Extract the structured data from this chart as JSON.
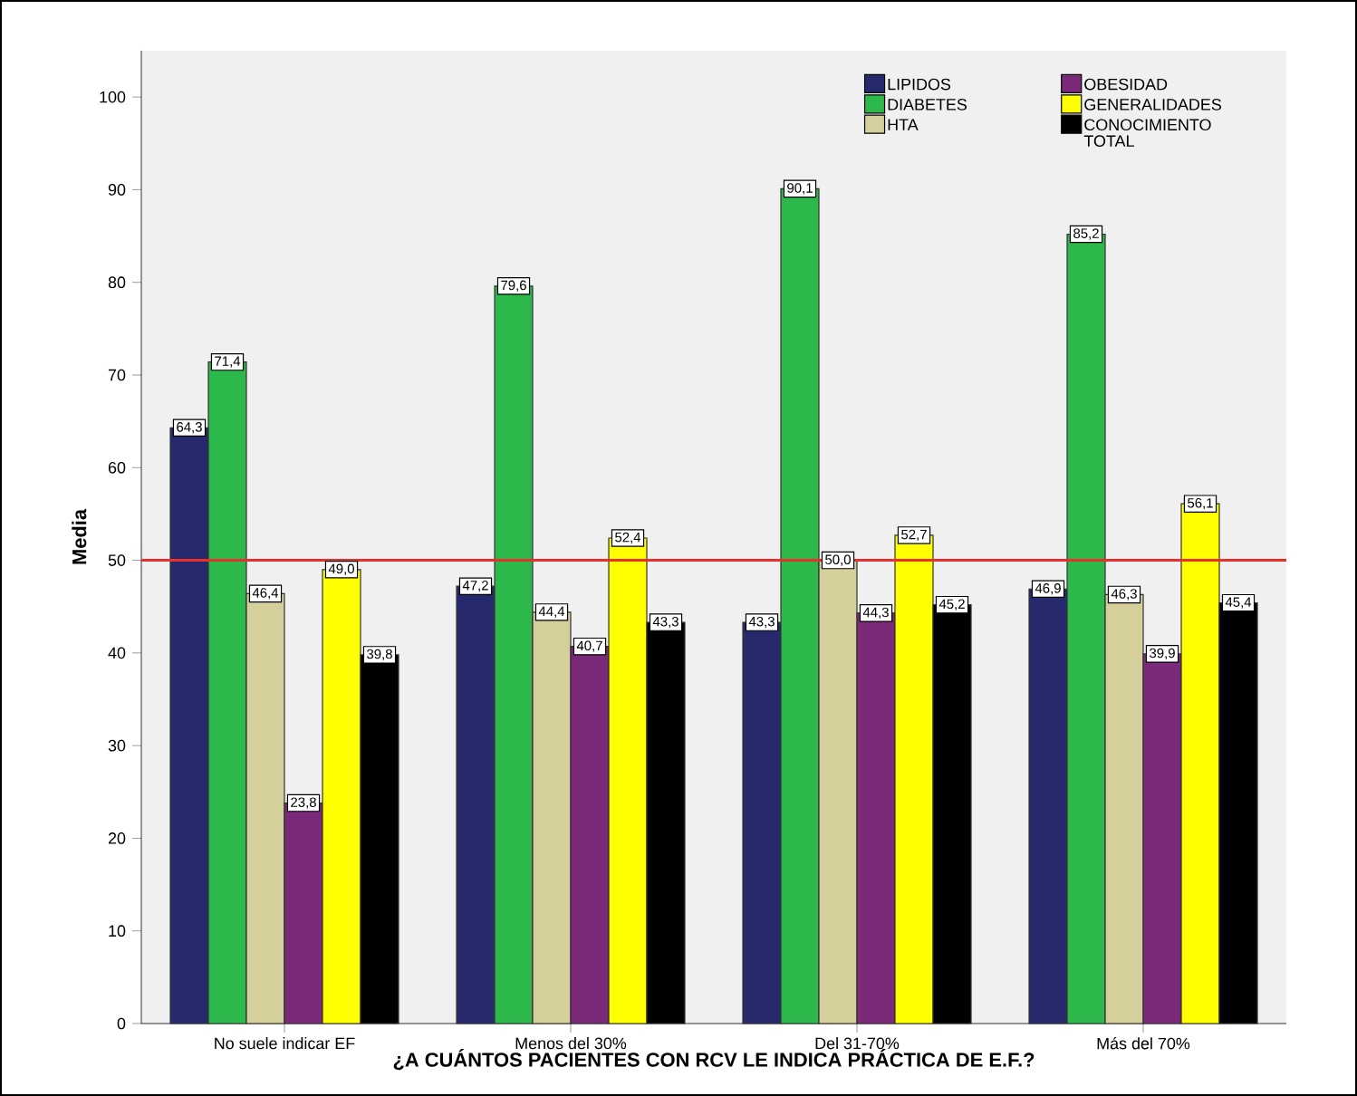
{
  "chart_data": {
    "type": "bar",
    "xlabel": "¿A CUÁNTOS PACIENTES CON RCV LE INDICA PRÁCTICA DE E.F.?",
    "ylabel": "Media",
    "categories": [
      "No suele indicar EF",
      "Menos del 30%",
      "Del 31-70%",
      "Más del 70%"
    ],
    "series": [
      {
        "name": "LIPIDOS",
        "color": "#262a6c",
        "values": [
          64.3,
          47.2,
          43.3,
          46.9
        ],
        "value_labels": [
          "64,3",
          "47,2",
          "43,3",
          "46,9"
        ]
      },
      {
        "name": "DIABETES",
        "color": "#2db84b",
        "values": [
          71.4,
          79.6,
          90.1,
          85.2
        ],
        "value_labels": [
          "71,4",
          "79,6",
          "90,1",
          "85,2"
        ]
      },
      {
        "name": "HTA",
        "color": "#d4cf9b",
        "values": [
          46.4,
          44.4,
          50.0,
          46.3
        ],
        "value_labels": [
          "46,4",
          "44,4",
          "50,0",
          "46,3"
        ]
      },
      {
        "name": "OBESIDAD",
        "color": "#7b2a7a",
        "values": [
          23.8,
          40.7,
          44.3,
          39.9
        ],
        "value_labels": [
          "23,8",
          "40,7",
          "44,3",
          "39,9"
        ]
      },
      {
        "name": "GENERALIDADES",
        "color": "#ffff00",
        "values": [
          49.0,
          52.4,
          52.7,
          56.1
        ],
        "value_labels": [
          "49,0",
          "52,4",
          "52,7",
          "56,1"
        ]
      },
      {
        "name": "CONOCIMIENTO TOTAL",
        "color": "#000000",
        "values": [
          39.8,
          43.3,
          45.2,
          45.4
        ],
        "value_labels": [
          "39,8",
          "43,3",
          "45,2",
          "45,4"
        ]
      }
    ],
    "ylim": [
      0,
      105
    ],
    "yticks": [
      0,
      10,
      20,
      30,
      40,
      50,
      60,
      70,
      80,
      90,
      100
    ],
    "legend": "top right",
    "ref_lines": [
      {
        "axis": "y",
        "value": 50,
        "color": "#e8302c"
      }
    ]
  }
}
